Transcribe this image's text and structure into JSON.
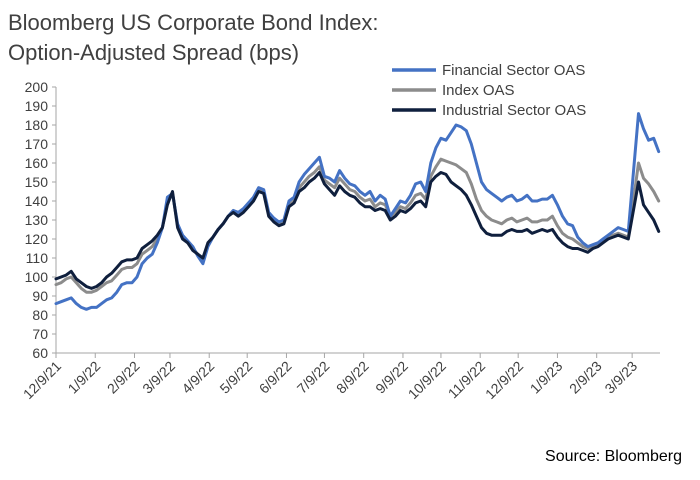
{
  "title_lines": [
    "Bloomberg US Corporate Bond Index:",
    "Option-Adjusted Spread (bps)"
  ],
  "source": "Source: Bloomberg",
  "chart_data": {
    "type": "line",
    "title": "Bloomberg US Corporate Bond Index: Option-Adjusted Spread (bps)",
    "xlabel": "",
    "ylabel": "",
    "ylim": [
      60,
      200
    ],
    "yticks": [
      60,
      70,
      80,
      90,
      100,
      110,
      120,
      130,
      140,
      150,
      160,
      170,
      180,
      190,
      200
    ],
    "xlim": [
      "2021-12-09",
      "2023-03-31"
    ],
    "xticks": [
      {
        "date": "2021-12-09",
        "label": "12/9/21"
      },
      {
        "date": "2022-01-09",
        "label": "1/9/22"
      },
      {
        "date": "2022-02-09",
        "label": "2/9/22"
      },
      {
        "date": "2022-03-09",
        "label": "3/9/22"
      },
      {
        "date": "2022-04-09",
        "label": "4/9/22"
      },
      {
        "date": "2022-05-09",
        "label": "5/9/22"
      },
      {
        "date": "2022-06-09",
        "label": "6/9/22"
      },
      {
        "date": "2022-07-09",
        "label": "7/9/22"
      },
      {
        "date": "2022-08-09",
        "label": "8/9/22"
      },
      {
        "date": "2022-09-09",
        "label": "9/9/22"
      },
      {
        "date": "2022-10-09",
        "label": "10/9/22"
      },
      {
        "date": "2022-11-09",
        "label": "11/9/22"
      },
      {
        "date": "2022-12-09",
        "label": "12/9/22"
      },
      {
        "date": "2023-01-09",
        "label": "1/9/23"
      },
      {
        "date": "2023-02-09",
        "label": "2/9/23"
      },
      {
        "date": "2023-03-09",
        "label": "3/9/23"
      }
    ],
    "grid": false,
    "legend": "top-right",
    "x": [
      "2021-12-09",
      "2021-12-13",
      "2021-12-17",
      "2021-12-21",
      "2021-12-25",
      "2021-12-29",
      "2022-01-02",
      "2022-01-06",
      "2022-01-10",
      "2022-01-14",
      "2022-01-18",
      "2022-01-22",
      "2022-01-26",
      "2022-01-30",
      "2022-02-03",
      "2022-02-07",
      "2022-02-11",
      "2022-02-15",
      "2022-02-19",
      "2022-02-23",
      "2022-02-27",
      "2022-03-03",
      "2022-03-07",
      "2022-03-11",
      "2022-03-15",
      "2022-03-19",
      "2022-03-23",
      "2022-03-27",
      "2022-03-31",
      "2022-04-04",
      "2022-04-08",
      "2022-04-12",
      "2022-04-16",
      "2022-04-20",
      "2022-04-24",
      "2022-04-28",
      "2022-05-02",
      "2022-05-06",
      "2022-05-10",
      "2022-05-14",
      "2022-05-18",
      "2022-05-22",
      "2022-05-26",
      "2022-05-30",
      "2022-06-03",
      "2022-06-07",
      "2022-06-11",
      "2022-06-15",
      "2022-06-19",
      "2022-06-23",
      "2022-06-27",
      "2022-07-01",
      "2022-07-05",
      "2022-07-09",
      "2022-07-13",
      "2022-07-17",
      "2022-07-21",
      "2022-07-25",
      "2022-07-29",
      "2022-08-02",
      "2022-08-06",
      "2022-08-10",
      "2022-08-14",
      "2022-08-18",
      "2022-08-22",
      "2022-08-26",
      "2022-08-30",
      "2022-09-03",
      "2022-09-07",
      "2022-09-11",
      "2022-09-15",
      "2022-09-19",
      "2022-09-23",
      "2022-09-27",
      "2022-10-01",
      "2022-10-05",
      "2022-10-09",
      "2022-10-13",
      "2022-10-17",
      "2022-10-21",
      "2022-10-25",
      "2022-10-29",
      "2022-11-02",
      "2022-11-06",
      "2022-11-10",
      "2022-11-14",
      "2022-11-18",
      "2022-11-22",
      "2022-11-26",
      "2022-11-30",
      "2022-12-04",
      "2022-12-08",
      "2022-12-12",
      "2022-12-16",
      "2022-12-20",
      "2022-12-24",
      "2022-12-28",
      "2023-01-01",
      "2023-01-05",
      "2023-01-09",
      "2023-01-13",
      "2023-01-17",
      "2023-01-21",
      "2023-01-25",
      "2023-01-29",
      "2023-02-02",
      "2023-02-06",
      "2023-02-10",
      "2023-02-14",
      "2023-02-18",
      "2023-02-22",
      "2023-02-26",
      "2023-03-02",
      "2023-03-06",
      "2023-03-10",
      "2023-03-14",
      "2023-03-18",
      "2023-03-22",
      "2023-03-26",
      "2023-03-30"
    ],
    "series": [
      {
        "name": "Financial Sector OAS",
        "color": "#4472C4",
        "values": [
          86,
          87,
          88,
          89,
          86,
          84,
          83,
          84,
          84,
          86,
          88,
          89,
          92,
          96,
          97,
          97,
          100,
          107,
          110,
          112,
          118,
          126,
          142,
          144,
          128,
          122,
          119,
          116,
          111,
          107,
          116,
          121,
          125,
          128,
          132,
          135,
          134,
          136,
          139,
          142,
          147,
          146,
          134,
          131,
          129,
          130,
          140,
          142,
          150,
          154,
          157,
          160,
          163,
          153,
          152,
          150,
          156,
          152,
          149,
          148,
          145,
          143,
          145,
          140,
          143,
          141,
          132,
          136,
          140,
          139,
          143,
          149,
          150,
          145,
          160,
          168,
          173,
          172,
          176,
          180,
          179,
          177,
          170,
          160,
          150,
          146,
          144,
          142,
          140,
          142,
          143,
          140,
          141,
          143,
          140,
          140,
          141,
          141,
          143,
          138,
          132,
          128,
          127,
          121,
          118,
          116,
          117,
          118,
          120,
          122,
          124,
          126,
          125,
          124,
          155,
          186,
          178,
          172,
          173,
          166
        ]
      },
      {
        "name": "Index OAS",
        "color": "#8C8C8C",
        "values": [
          96,
          97,
          99,
          100,
          97,
          94,
          92,
          92,
          93,
          95,
          97,
          98,
          101,
          104,
          105,
          105,
          107,
          112,
          114,
          116,
          120,
          126,
          140,
          144,
          127,
          121,
          118,
          115,
          112,
          109,
          117,
          121,
          125,
          128,
          132,
          135,
          133,
          135,
          138,
          141,
          146,
          145,
          133,
          130,
          128,
          129,
          138,
          140,
          147,
          150,
          153,
          155,
          158,
          151,
          149,
          147,
          152,
          149,
          146,
          145,
          142,
          140,
          141,
          137,
          139,
          138,
          132,
          134,
          137,
          136,
          139,
          143,
          144,
          141,
          153,
          158,
          162,
          161,
          160,
          159,
          157,
          155,
          149,
          141,
          135,
          132,
          130,
          129,
          128,
          130,
          131,
          129,
          130,
          131,
          129,
          129,
          130,
          130,
          132,
          127,
          123,
          121,
          120,
          118,
          116,
          115,
          116,
          117,
          119,
          121,
          122,
          123,
          122,
          121,
          140,
          160,
          152,
          149,
          145,
          140
        ]
      },
      {
        "name": "Industrial Sector OAS",
        "color": "#0F1F3D",
        "values": [
          99,
          100,
          101,
          103,
          99,
          97,
          95,
          94,
          95,
          97,
          100,
          102,
          105,
          108,
          109,
          109,
          110,
          115,
          117,
          119,
          122,
          126,
          138,
          145,
          126,
          120,
          118,
          114,
          112,
          110,
          118,
          121,
          125,
          128,
          132,
          134,
          132,
          134,
          137,
          140,
          145,
          144,
          132,
          129,
          127,
          128,
          137,
          139,
          145,
          147,
          150,
          152,
          155,
          149,
          146,
          143,
          148,
          145,
          143,
          142,
          139,
          137,
          137,
          135,
          136,
          135,
          130,
          132,
          135,
          134,
          136,
          139,
          140,
          137,
          150,
          153,
          155,
          154,
          150,
          148,
          146,
          143,
          138,
          132,
          126,
          123,
          122,
          122,
          122,
          124,
          125,
          124,
          124,
          125,
          123,
          124,
          125,
          124,
          125,
          121,
          118,
          116,
          115,
          115,
          114,
          113,
          115,
          116,
          118,
          120,
          121,
          122,
          121,
          120,
          135,
          150,
          138,
          134,
          130,
          124
        ]
      }
    ]
  }
}
